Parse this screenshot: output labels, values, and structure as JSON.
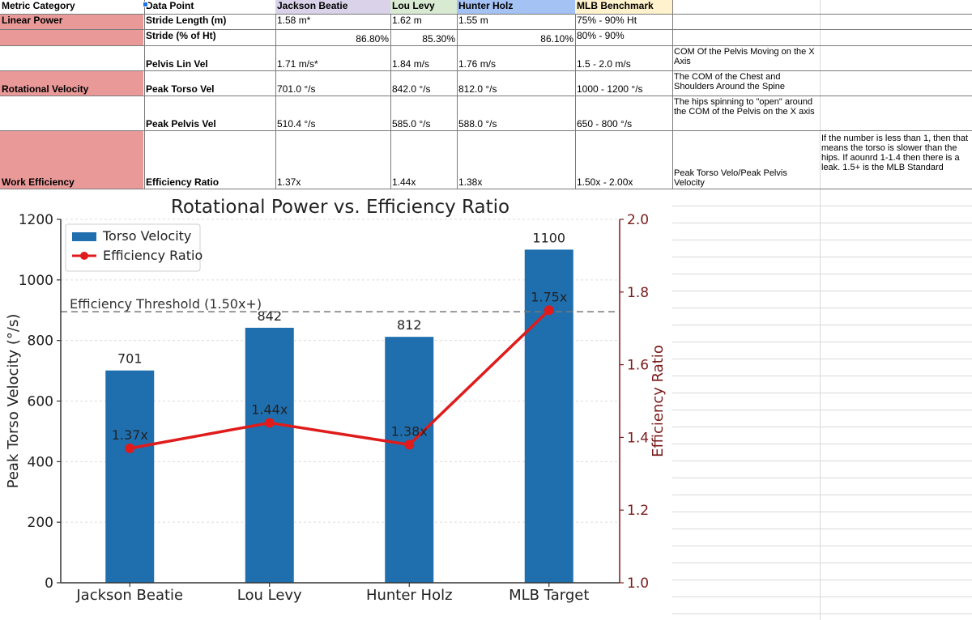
{
  "sheet": {
    "header": {
      "metric_category": "Metric Category",
      "data_point": "Data Point",
      "jackson": "Jackson Beatie",
      "lou": "Lou Levy",
      "hunter": "Hunter Holz",
      "mlb": "MLB Benchmark"
    },
    "header_colors": {
      "jackson": "#d9d2e9",
      "lou": "#d9ead3",
      "hunter": "#a4c2f4",
      "mlb": "#fff2cc",
      "category": "#ea9999"
    },
    "categories": {
      "linear": "Linear Power",
      "rotational": "Rotational Velocity",
      "work": "Work Efficiency"
    },
    "rows": {
      "stride_length": {
        "label": "Stride Length (m)",
        "jackson": "1.58 m*",
        "lou": "1.62 m",
        "hunter": "1.55 m",
        "mlb": "75% - 90% Ht"
      },
      "stride_pct": {
        "label": "Stride (% of Ht)",
        "jackson": "86.80%",
        "lou": "85.30%",
        "hunter": "86.10%",
        "mlb": "80% - 90%"
      },
      "pelvis_lin": {
        "label": "Pelvis Lin Vel",
        "jackson": "1.71 m/s*",
        "lou": "1.84 m/s",
        "hunter": "1.76 m/s",
        "mlb": "1.5 - 2.0 m/s",
        "note": "COM Of the Pelvis Moving on the X Axis"
      },
      "peak_torso": {
        "label": "Peak Torso Vel",
        "jackson": "701.0 °/s",
        "lou": "842.0 °/s",
        "hunter": "812.0 °/s",
        "mlb": "1000 - 1200 °/s",
        "note": "The COM of the Chest and Shoulders Around the Spine"
      },
      "peak_pelvis": {
        "label": "Peak Pelvis Vel",
        "jackson": "510.4 °/s",
        "lou": "585.0 °/s",
        "hunter": "588.0 °/s",
        "mlb": "650 - 800 °/s",
        "note": "The hips spinning to \"open\" around the COM of the Pelvis on the X axis"
      },
      "efficiency": {
        "label": "Efficiency Ratio",
        "jackson": "1.37x",
        "lou": "1.44x",
        "hunter": "1.38x",
        "mlb": "1.50x - 2.00x",
        "note": "Peak Torso Velo/Peak Pelvis Velocity",
        "note2": "If the number is less than 1, then that means the torso is slower than the hips. If aounrd 1-1.4 then there is a leak. 1.5+ is the MLB Standard"
      }
    }
  },
  "chart_data": {
    "type": "bar",
    "title": "Rotational Power vs. Efficiency Ratio",
    "categories": [
      "Jackson Beatie",
      "Lou Levy",
      "Hunter Holz",
      "MLB Target"
    ],
    "series": [
      {
        "name": "Torso Velocity",
        "type": "bar",
        "axis": "left",
        "values": [
          701,
          842,
          812,
          1100
        ],
        "labels": [
          "701",
          "842",
          "812",
          "1100"
        ],
        "color": "#1f6faf"
      },
      {
        "name": "Efficiency Ratio",
        "type": "line",
        "axis": "right",
        "values": [
          1.37,
          1.44,
          1.38,
          1.75
        ],
        "labels": [
          "1.37x",
          "1.44x",
          "1.38x",
          "1.75x"
        ],
        "color": "#e01b1b"
      }
    ],
    "ylabel": "Peak Torso Velocity (°/s)",
    "ylabel_right": "Efficiency Ratio",
    "ylim": [
      0,
      1200
    ],
    "ylim_right": [
      1.0,
      2.0
    ],
    "yticks": [
      0,
      200,
      400,
      600,
      800,
      1000,
      1200
    ],
    "yticks_right": [
      "1.0",
      "1.2",
      "1.4",
      "1.6",
      "1.8",
      "2.0"
    ],
    "yticks_right_values": [
      1.0,
      1.2,
      1.4,
      1.6,
      1.8,
      2.0
    ],
    "threshold": {
      "label": "Efficiency Threshold (1.50x+)",
      "value": 1.5,
      "axis": "left_equiv",
      "left_value": 895
    },
    "legend": "top-left",
    "grid": true,
    "right_axis_color": "#7a1a1a"
  }
}
